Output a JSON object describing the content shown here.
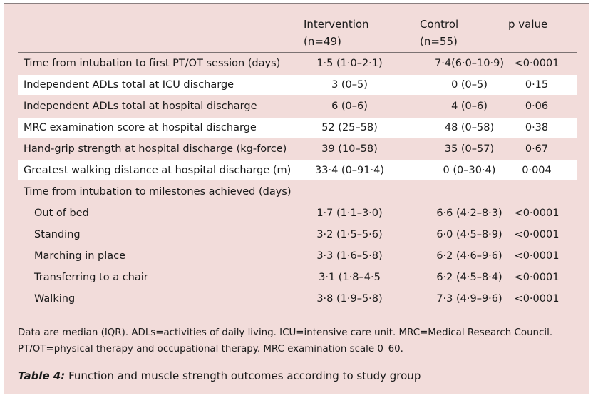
{
  "header": {
    "intervention": [
      "Intervention",
      "(n=49)"
    ],
    "control": [
      "Control",
      "(n=55)"
    ],
    "p_value": "p value"
  },
  "rows": [
    {
      "label": "Time from intubation to first PT/OT session (days)",
      "intervention": "1·5 (1·0–2·1)",
      "control": "7·4(6·0–10·9)",
      "p": "<0·0001"
    },
    {
      "label": "Independent ADLs total at ICU discharge",
      "intervention": "3 (0–5)",
      "control": "0 (0–5)",
      "p": "0·15"
    },
    {
      "label": "Independent ADLs total at hospital discharge",
      "intervention": "6 (0–6)",
      "control": "4 (0–6)",
      "p": "0·06"
    },
    {
      "label": "MRC examination score at hospital discharge",
      "intervention": "52 (25–58)",
      "control": "48 (0–58)",
      "p": "0·38"
    },
    {
      "label": "Hand-grip strength at hospital discharge (kg-force)",
      "intervention": "39 (10–58)",
      "control": "35 (0–57)",
      "p": "0·67"
    },
    {
      "label": "Greatest walking distance at hospital discharge (m)",
      "intervention": "33·4 (0–91·4)",
      "control": "0 (0–30·4)",
      "p": "0·004"
    },
    {
      "label": "Time from intubation to milestones achieved (days)",
      "intervention": "",
      "control": "",
      "p": ""
    },
    {
      "label": "Out of bed",
      "intervention": "1·7 (1·1–3·0)",
      "control": "6·6 (4·2–8·3)",
      "p": "<0·0001"
    },
    {
      "label": "Standing",
      "intervention": "3·2 (1·5–5·6)",
      "control": "6·0 (4·5–8·9)",
      "p": "<0·0001"
    },
    {
      "label": "Marching in place",
      "intervention": "3·3 (1·6–5·8)",
      "control": "6·2 (4·6–9·6)",
      "p": "<0·0001"
    },
    {
      "label": "Transferring to a chair",
      "intervention": "3·1 (1·8–4·5",
      "control": "6·2 (4·5–8·4)",
      "p": "<0·0001"
    },
    {
      "label": "Walking",
      "intervention": "3·8 (1·9–5·8)",
      "control": "7·3 (4·9–9·6)",
      "p": "<0·0001"
    }
  ],
  "notes": [
    "Data are median (IQR). ADLs=activities of daily living. ICU=intensive care unit. MRC=Medical Research Council.",
    "PT/OT=physical therapy and occupational therapy. MRC examination scale 0–60."
  ],
  "caption": {
    "label": "Table 4:",
    "text": " Function and muscle strength outcomes according to study group"
  },
  "colors": {
    "panel_background": "#f2dcda",
    "shaded_row": "#ffffff",
    "rule": "#7c7272"
  }
}
